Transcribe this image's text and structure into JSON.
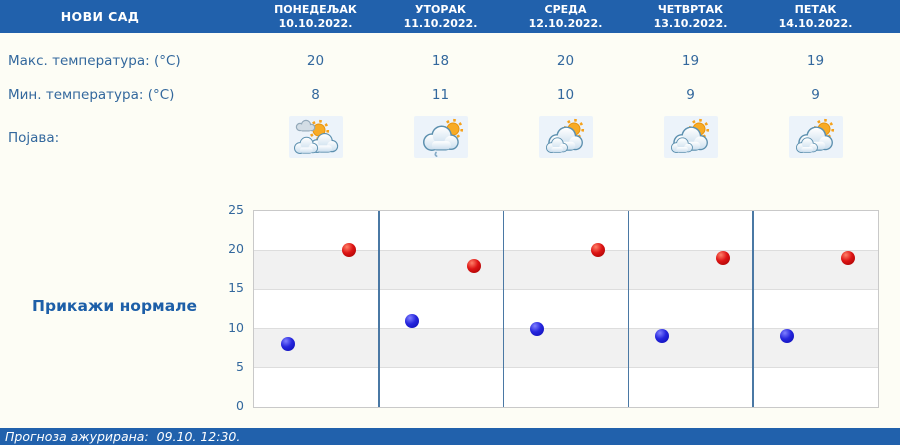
{
  "header": {
    "location": "НОВИ САД",
    "days": [
      {
        "name": "ПОНЕДЕЉАК",
        "date": "10.10.2022."
      },
      {
        "name": "УТОРАК",
        "date": "11.10.2022."
      },
      {
        "name": "СРЕДА",
        "date": "12.10.2022."
      },
      {
        "name": "ЧЕТВРТАК",
        "date": "13.10.2022."
      },
      {
        "name": "ПЕТАК",
        "date": "14.10.2022."
      }
    ]
  },
  "table": {
    "max_temp": {
      "label": "Макс. температура: (°C)",
      "values": [
        "20",
        "18",
        "20",
        "19",
        "19"
      ]
    },
    "min_temp": {
      "label": "Мин. температура: (°C)",
      "values": [
        "8",
        "11",
        "10",
        "9",
        "9"
      ]
    },
    "phenomenon": {
      "label": "Појава:",
      "icons": [
        "sun-with-clouds",
        "cloud-sun-light-rain",
        "cloudy-with-sun",
        "cloudy-with-sun",
        "cloudy-with-sun"
      ]
    }
  },
  "normals_link": {
    "label": "Прикажи нормале"
  },
  "footer": {
    "updated": "Прогноза ажурирана:  09.10. 12:30."
  },
  "chart_data": {
    "type": "scatter",
    "categories": [
      "ПОНЕДЕЉАК 10.10.2022.",
      "УТОРАК 11.10.2022.",
      "СРЕДА 12.10.2022.",
      "ЧЕТВРТАК 13.10.2022.",
      "ПЕТАК 14.10.2022."
    ],
    "series": [
      {
        "id": "max",
        "name": "Макс. температура (°C)",
        "color": "#cc0000",
        "values": [
          20,
          18,
          20,
          19,
          19
        ],
        "x_fraction": 0.76
      },
      {
        "id": "min",
        "name": "Мин. температура (°C)",
        "color": "#1a1ad0",
        "values": [
          8,
          11,
          10,
          9,
          9
        ],
        "x_fraction": 0.27
      }
    ],
    "ylim": [
      0,
      25
    ],
    "yticks": [
      0,
      5,
      10,
      15,
      20,
      25
    ],
    "xlabel": "",
    "ylabel": "",
    "title": "",
    "legend": "none",
    "grid": "gray horizontal bands 5-10 and 15-20, blue vertical day separators"
  },
  "colors": {
    "header_bg": "#2161ac",
    "label_text": "#33689d",
    "link_text": "#1d5fa8",
    "max_point": "#cc0000",
    "min_point": "#1a1ad0",
    "tile_bg": "#ecf3fa",
    "band_gray": "#f1f1f1",
    "separator_blue": "#4a78a4"
  }
}
